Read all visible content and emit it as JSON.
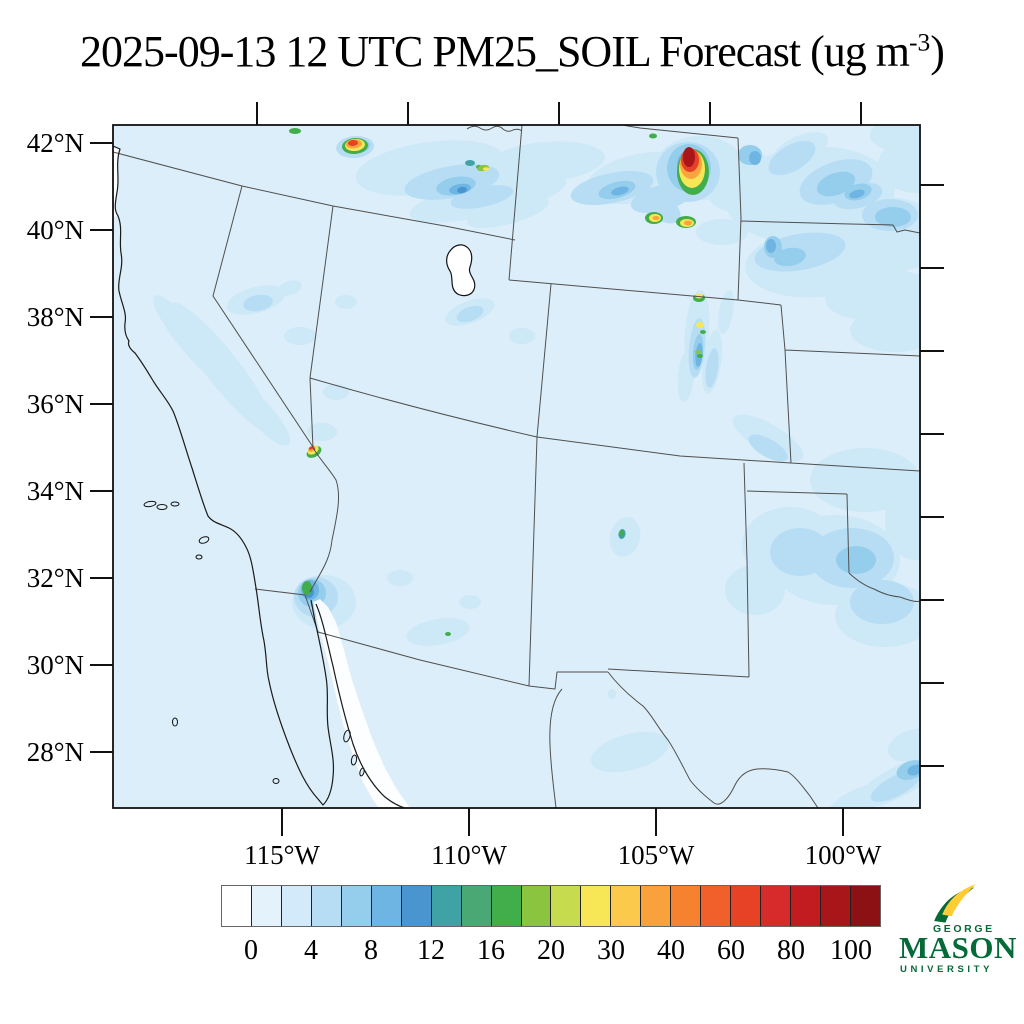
{
  "title": {
    "prefix": "2025-09-13 12 UTC PM25_SOIL Forecast (ug m",
    "exponent": "-3",
    "suffix": ")"
  },
  "axes": {
    "lat_labels": [
      "42°N",
      "40°N",
      "38°N",
      "36°N",
      "34°N",
      "32°N",
      "30°N",
      "28°N"
    ],
    "lon_labels": [
      "115°W",
      "110°W",
      "105°W",
      "100°W"
    ]
  },
  "colorbar": {
    "tick_labels": [
      "0",
      "4",
      "8",
      "12",
      "16",
      "20",
      "30",
      "40",
      "60",
      "80",
      "100"
    ],
    "segment_colors": [
      "#ffffff",
      "#e4f2fb",
      "#d2eaf9",
      "#b7ddf4",
      "#95cdec",
      "#6fb5e3",
      "#4a94d0",
      "#3fa2a4",
      "#49a874",
      "#41ad4b",
      "#8bc540",
      "#c6db4e",
      "#f7e757",
      "#fbc94b",
      "#f9a23c",
      "#f6822f",
      "#f15f2a",
      "#e74226",
      "#d62b2a",
      "#c31c20",
      "#a8161a",
      "#8c1114"
    ]
  },
  "logo": {
    "george": "GEORGE",
    "mason": "MASON",
    "university": "UNIVERSITY",
    "green": "#046a38",
    "gold": "#ffcc33"
  },
  "chart_data": {
    "type": "heatmap",
    "variable": "PM25_SOIL",
    "forecast_time": "2025-09-13 12 UTC",
    "units": "ug m-3",
    "title": "2025-09-13 12 UTC PM25_SOIL Forecast (ug m-3)",
    "region": "Southwestern United States and northern Mexico",
    "lat_axis_ticks_deg_north": [
      42,
      40,
      38,
      36,
      34,
      32,
      30,
      28
    ],
    "lon_axis_ticks_deg_west": [
      115,
      110,
      105,
      100
    ],
    "colorbar_labeled_levels": [
      0,
      4,
      8,
      12,
      16,
      20,
      30,
      40,
      60,
      80,
      100
    ],
    "colorbar_num_bins": 22,
    "legend_position": "bottom",
    "background_level": "0-4 ug m-3 pale blue over most of the domain; white bin below 0 label",
    "hotspots": [
      {
        "area": "central Wyoming",
        "intensity": "dark red core, >100"
      },
      {
        "area": "Oregon-Idaho-Nevada corner",
        "intensity": "red/orange spot, ~60-100"
      },
      {
        "area": "Snake River Plain, southern Idaho",
        "intensity": "blue plume with green/yellow specks, ~8-30"
      },
      {
        "area": "southwest Wyoming, two small spots",
        "intensity": "yellow/orange, ~30-60"
      },
      {
        "area": "Colorado Rockies, small spots",
        "intensity": "green/yellow, ~16-30"
      },
      {
        "area": "southern Nevada tip",
        "intensity": "red/orange speck, ~40-80"
      },
      {
        "area": "Salton Sea / Imperial Valley, California",
        "intensity": "blue blob with green core, ~12-20"
      },
      {
        "area": "central New Mexico",
        "intensity": "small teal/green spot, ~12-16"
      },
      {
        "area": "Nebraska and Colorado-Kansas plains",
        "intensity": "light-medium blue, ~4-10"
      },
      {
        "area": "west Texas and southeast corner of map",
        "intensity": "light-medium blue, ~4-8"
      }
    ]
  }
}
